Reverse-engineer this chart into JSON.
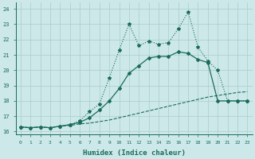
{
  "xlabel": "Humidex (Indice chaleur)",
  "bg_color": "#cce8e8",
  "grid_color": "#aacccc",
  "line_color": "#1a6b5a",
  "xlim": [
    -0.5,
    23.5
  ],
  "ylim": [
    15.8,
    24.4
  ],
  "xticks": [
    0,
    1,
    2,
    3,
    4,
    5,
    6,
    7,
    8,
    9,
    10,
    11,
    12,
    13,
    14,
    15,
    16,
    17,
    18,
    19,
    20,
    21,
    22,
    23
  ],
  "yticks": [
    16,
    17,
    18,
    19,
    20,
    21,
    22,
    23,
    24
  ],
  "curve1_x": [
    0,
    1,
    2,
    3,
    4,
    5,
    6,
    7,
    8,
    9,
    10,
    11,
    12,
    13,
    14,
    15,
    16,
    17,
    18,
    19,
    20,
    21,
    22,
    23
  ],
  "curve1_y": [
    16.3,
    16.25,
    16.3,
    16.25,
    16.35,
    16.4,
    16.5,
    16.55,
    16.65,
    16.75,
    16.9,
    17.05,
    17.2,
    17.35,
    17.5,
    17.65,
    17.8,
    17.95,
    18.1,
    18.25,
    18.35,
    18.45,
    18.55,
    18.6
  ],
  "curve2_x": [
    0,
    1,
    2,
    3,
    4,
    5,
    6,
    7,
    8,
    9,
    10,
    11,
    12,
    13,
    14,
    15,
    16,
    17,
    18,
    19,
    20,
    21,
    22,
    23
  ],
  "curve2_y": [
    16.3,
    16.25,
    16.3,
    16.25,
    16.35,
    16.45,
    16.7,
    17.3,
    17.8,
    19.5,
    21.3,
    23.0,
    21.6,
    21.9,
    21.7,
    21.8,
    22.7,
    23.8,
    21.5,
    20.6,
    20.0,
    18.0,
    18.0,
    18.0
  ],
  "curve3_x": [
    0,
    1,
    2,
    3,
    4,
    5,
    6,
    7,
    8,
    9,
    10,
    11,
    12,
    13,
    14,
    15,
    16,
    17,
    18,
    19,
    20,
    21,
    22,
    23
  ],
  "curve3_y": [
    16.3,
    16.25,
    16.3,
    16.25,
    16.35,
    16.45,
    16.6,
    16.9,
    17.4,
    18.0,
    18.8,
    19.8,
    20.3,
    20.8,
    20.9,
    20.9,
    21.2,
    21.1,
    20.7,
    20.5,
    18.0,
    18.0,
    18.0,
    18.0
  ],
  "figwidth": 3.2,
  "figheight": 2.0,
  "dpi": 100
}
